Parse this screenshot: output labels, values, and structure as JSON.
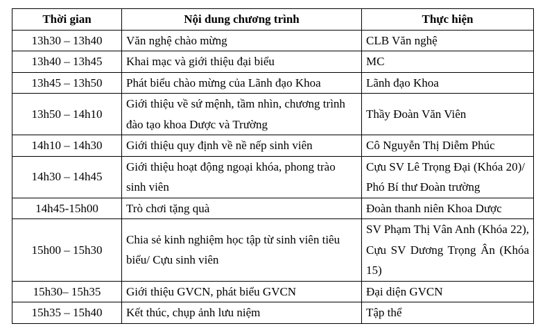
{
  "headers": [
    "Thời gian",
    "Nội dung chương trình",
    "Thực hiện"
  ],
  "rows": [
    {
      "time": "13h30 – 13h40",
      "content": "Văn nghệ chào mừng",
      "by": "CLB Văn nghệ"
    },
    {
      "time": "13h40 – 13h45",
      "content": "Khai mạc và giới thiệu đại biểu",
      "by": "MC"
    },
    {
      "time": "13h45 – 13h50",
      "content": "Phát biểu chào mừng của Lãnh đạo Khoa",
      "by": "Lãnh đạo Khoa"
    },
    {
      "time": "13h50 – 14h10",
      "content": "Giới thiệu về sứ mệnh, tầm nhìn, chương trình đào tạo khoa Dược và Trường",
      "by": "Thầy Đoàn Văn Viên"
    },
    {
      "time": "14h10 – 14h30",
      "content": "Giới thiệu quy định về nề nếp sinh viên",
      "by": "Cô Nguyễn Thị Diễm Phúc"
    },
    {
      "time": "14h30 – 14h45",
      "content": "Giới thiệu hoạt động ngoại khóa, phong trào sinh viên",
      "by": "Cựu SV Lê Trọng Đại (Khóa 20)/ Phó Bí thư Đoàn trường"
    },
    {
      "time": "14h45-15h00",
      "content": "Trò chơi tặng quà",
      "by": "Đoàn thanh niên Khoa Dược"
    },
    {
      "time": "15h00 – 15h30",
      "content": "Chia sẻ kinh nghiệm học tập từ sinh viên tiêu biểu/ Cựu sinh viên",
      "by": "SV Phạm Thị Vân Anh (Khóa 22), Cựu SV Dương Trọng Ân (Khóa 15)"
    },
    {
      "time": "15h30– 15h35",
      "content": "Giới thiệu GVCN, phát biểu GVCN",
      "by": "Đại diện GVCN"
    },
    {
      "time": "15h35 – 15h40",
      "content": "Kết thúc, chụp ảnh lưu niệm",
      "by": "Tập thể"
    }
  ]
}
